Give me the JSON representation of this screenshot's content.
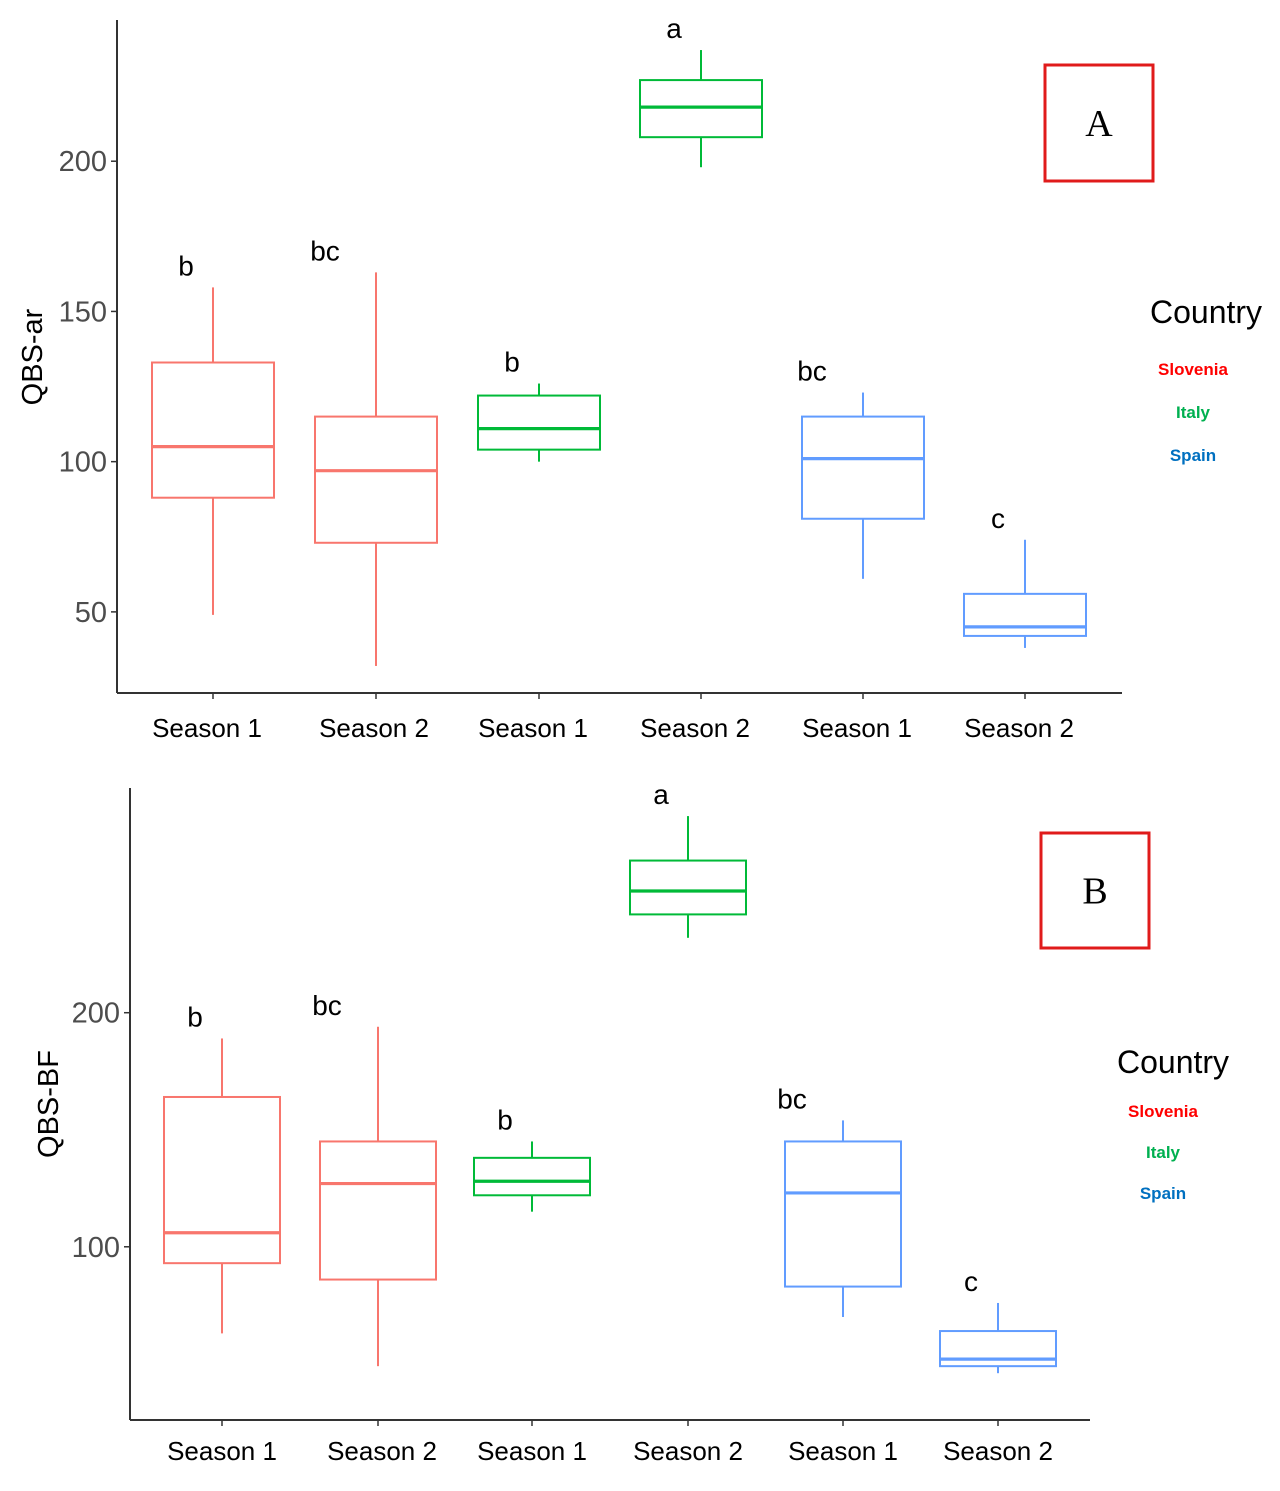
{
  "chart_data": [
    {
      "type": "box",
      "panel_label": "A",
      "ylabel": "QBS-ar",
      "yticks": [
        50,
        100,
        150,
        200
      ],
      "ylim": [
        23,
        247
      ],
      "categories": [
        "Season 1",
        "Season 2",
        "Season 1",
        "Season 2",
        "Season 1",
        "Season 2"
      ],
      "boxes": [
        {
          "country": "Slovenia",
          "label": "Season 1",
          "min": 49,
          "q1": 88,
          "median": 105,
          "q3": 133,
          "max": 158,
          "sig": "b"
        },
        {
          "country": "Slovenia",
          "label": "Season 2",
          "min": 32,
          "q1": 73,
          "median": 97,
          "q3": 115,
          "max": 163,
          "sig": "bc"
        },
        {
          "country": "Italy",
          "label": "Season 1",
          "min": 100,
          "q1": 104,
          "median": 111,
          "q3": 122,
          "max": 126,
          "sig": "b"
        },
        {
          "country": "Italy",
          "label": "Season 2",
          "min": 198,
          "q1": 208,
          "median": 218,
          "q3": 227,
          "max": 237,
          "sig": "a"
        },
        {
          "country": "Spain",
          "label": "Season 1",
          "min": 61,
          "q1": 81,
          "median": 101,
          "q3": 115,
          "max": 123,
          "sig": "bc"
        },
        {
          "country": "Spain",
          "label": "Season 2",
          "min": 38,
          "q1": 42,
          "median": 45,
          "q3": 56,
          "max": 74,
          "sig": "c"
        }
      ],
      "legend": {
        "title": "Country",
        "items": [
          {
            "label": "Slovenia",
            "color": "#f8766d"
          },
          {
            "label": "Italy",
            "color": "#00ba38"
          },
          {
            "label": "Spain",
            "color": "#619cff"
          }
        ]
      }
    },
    {
      "type": "box",
      "panel_label": "B",
      "ylabel": "QBS-BF",
      "yticks": [
        100,
        200
      ],
      "ylim": [
        26,
        296
      ],
      "categories": [
        "Season 1",
        "Season 2",
        "Season 1",
        "Season 2",
        "Season 1",
        "Season 2"
      ],
      "boxes": [
        {
          "country": "Slovenia",
          "label": "Season 1",
          "min": 63,
          "q1": 93,
          "median": 106,
          "q3": 164,
          "max": 189,
          "sig": "b"
        },
        {
          "country": "Slovenia",
          "label": "Season 2",
          "min": 49,
          "q1": 86,
          "median": 127,
          "q3": 145,
          "max": 194,
          "sig": "bc"
        },
        {
          "country": "Italy",
          "label": "Season 1",
          "min": 115,
          "q1": 122,
          "median": 128,
          "q3": 138,
          "max": 145,
          "sig": "b"
        },
        {
          "country": "Italy",
          "label": "Season 2",
          "min": 232,
          "q1": 242,
          "median": 252,
          "q3": 265,
          "max": 284,
          "sig": "a"
        },
        {
          "country": "Spain",
          "label": "Season 1",
          "min": 70,
          "q1": 83,
          "median": 123,
          "q3": 145,
          "max": 154,
          "sig": "bc"
        },
        {
          "country": "Spain",
          "label": "Season 2",
          "min": 46,
          "q1": 49,
          "median": 52,
          "q3": 64,
          "max": 76,
          "sig": "c"
        }
      ],
      "legend": {
        "title": "Country",
        "items": [
          {
            "label": "Slovenia",
            "color": "#f8766d"
          },
          {
            "label": "Italy",
            "color": "#00ba38"
          },
          {
            "label": "Spain",
            "color": "#619cff"
          }
        ]
      }
    }
  ],
  "colors": {
    "Slovenia": "#f8766d",
    "Italy": "#00ba38",
    "Spain": "#619cff",
    "legend_Slovenia": "#ff0000",
    "legend_Italy": "#00b050",
    "legend_Spain": "#0070c0",
    "panel_box": "#e01b1b"
  }
}
